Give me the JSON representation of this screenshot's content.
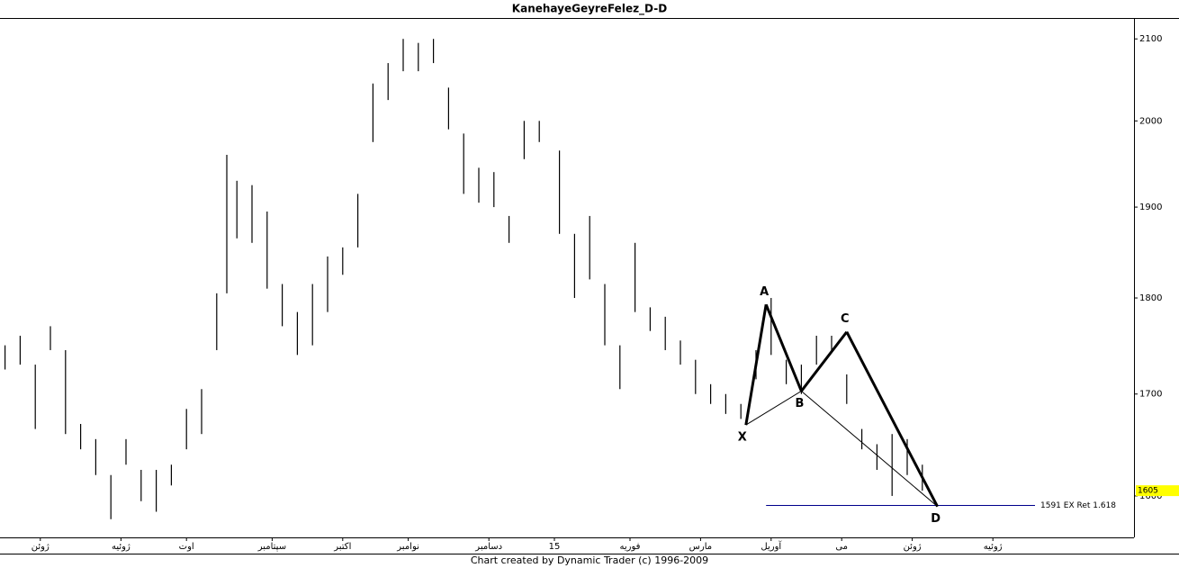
{
  "chart_data": {
    "type": "hilo",
    "title": "KanehayeGeyreFelez_D-D",
    "footer": "Chart created by Dynamic Trader  (c) 1996-2009",
    "log_scale": true,
    "color": "#000000",
    "xlim": [
      0,
      225
    ],
    "ylim": [
      1561,
      2124
    ],
    "yticks": [
      1600,
      1700,
      1800,
      1900,
      2000,
      2100
    ],
    "xticks": [
      {
        "value": 8,
        "label": "ژوئن"
      },
      {
        "value": 24,
        "label": "ژوئیه"
      },
      {
        "value": 37,
        "label": "اوت"
      },
      {
        "value": 54,
        "label": "سپتامبر"
      },
      {
        "value": 68,
        "label": "اکتبر"
      },
      {
        "value": 81,
        "label": "نوامبر"
      },
      {
        "value": 97,
        "label": "دسامبر"
      },
      {
        "value": 110,
        "label": "15"
      },
      {
        "value": 125,
        "label": "فوریه"
      },
      {
        "value": 139,
        "label": "مارس"
      },
      {
        "value": 153,
        "label": "آوریل"
      },
      {
        "value": 167,
        "label": "می"
      },
      {
        "value": 181,
        "label": "ژوئن"
      },
      {
        "value": 197,
        "label": "ژوئیه"
      }
    ],
    "x": [
      1,
      4,
      7,
      10,
      13,
      16,
      19,
      22,
      25,
      28,
      31,
      34,
      37,
      40,
      43,
      45,
      47,
      50,
      53,
      56,
      59,
      62,
      65,
      68,
      71,
      74,
      77,
      80,
      83,
      86,
      89,
      92,
      95,
      98,
      101,
      104,
      107,
      111,
      114,
      117,
      120,
      123,
      126,
      129,
      132,
      135,
      138,
      141,
      144,
      147,
      150,
      153,
      156,
      159,
      162,
      165,
      168,
      171,
      174,
      177,
      180,
      183
    ],
    "highs": [
      1750,
      1760,
      1730,
      1770,
      1745,
      1670,
      1655,
      1620,
      1655,
      1625,
      1625,
      1630,
      1685,
      1705,
      1805,
      1960,
      1930,
      1925,
      1895,
      1815,
      1785,
      1815,
      1845,
      1855,
      1915,
      2045,
      2070,
      2100,
      2095,
      2100,
      2040,
      1985,
      1945,
      1940,
      1890,
      2000,
      2000,
      1965,
      1870,
      1890,
      1815,
      1750,
      1860,
      1790,
      1780,
      1755,
      1735,
      1710,
      1700,
      1690,
      1745,
      1800,
      1735,
      1730,
      1760,
      1760,
      1720,
      1665,
      1650,
      1660,
      1655,
      1630
    ],
    "lows": [
      1725,
      1730,
      1665,
      1745,
      1660,
      1645,
      1620,
      1578,
      1630,
      1595,
      1585,
      1610,
      1645,
      1660,
      1745,
      1805,
      1865,
      1860,
      1810,
      1770,
      1740,
      1750,
      1785,
      1825,
      1855,
      1975,
      2025,
      2060,
      2060,
      2070,
      1990,
      1915,
      1905,
      1900,
      1860,
      1955,
      1975,
      1870,
      1800,
      1820,
      1750,
      1705,
      1785,
      1765,
      1745,
      1730,
      1700,
      1690,
      1680,
      1675,
      1715,
      1740,
      1710,
      1700,
      1730,
      1745,
      1690,
      1645,
      1625,
      1600,
      1620,
      1605
    ],
    "pattern": {
      "color": "#7b0000",
      "points": [
        {
          "label": "X",
          "x": 148,
          "value": 1669
        },
        {
          "label": "A",
          "x": 152,
          "value": 1793
        },
        {
          "label": "B",
          "x": 159,
          "value": 1703
        },
        {
          "label": "C",
          "x": 168,
          "value": 1764
        },
        {
          "label": "D",
          "x": 186,
          "value": 1590
        }
      ]
    },
    "projection": {
      "value": 1591,
      "label": "1591 EX Ret 1.618",
      "color": "#00008b"
    },
    "last_price": 1605
  }
}
